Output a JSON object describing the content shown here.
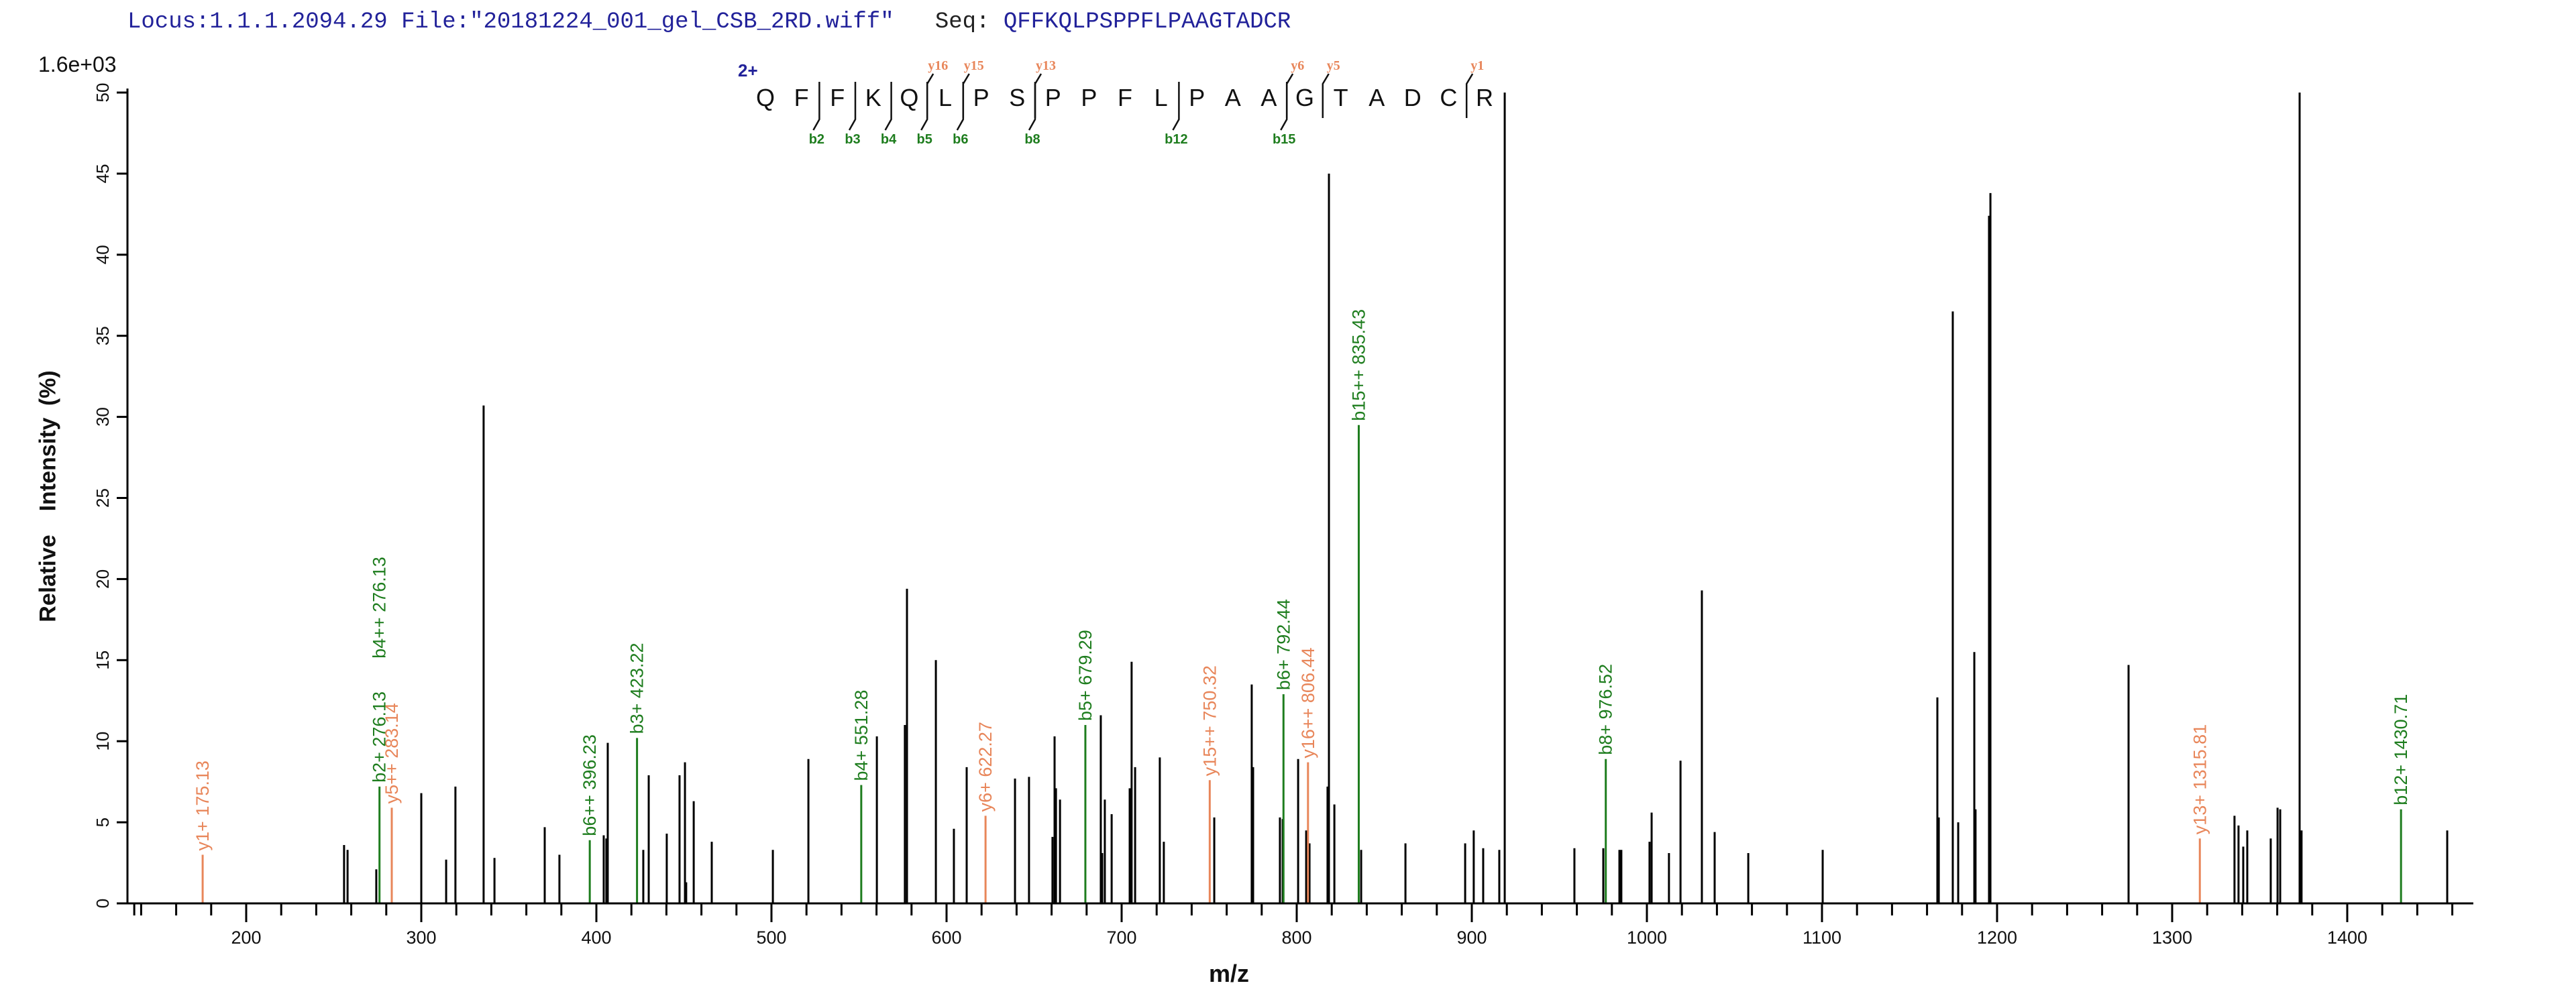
{
  "header": {
    "locus_label": "Locus:1.1.1.2094.29",
    "file_label": "File:\"20181224_001_gel_CSB_2RD.wiff\"",
    "seq_key": "Seq:",
    "seq_value": "QFFKQLPSPPFLPAAGTADCR"
  },
  "scale_label": "1.6e+03",
  "charge_label": "2+",
  "colors": {
    "b_ion": "#1e7d1e",
    "y_ion": "#e8865a",
    "unassigned": "#000000",
    "header_text": "#22229a",
    "axis": "#000000"
  },
  "sequence_map": {
    "residues": [
      "Q",
      "F",
      "F",
      "K",
      "Q",
      "L",
      "P",
      "S",
      "P",
      "P",
      "F",
      "L",
      "P",
      "A",
      "A",
      "G",
      "T",
      "A",
      "D",
      "C",
      "R"
    ],
    "b_cleavages": [
      {
        "after": 2,
        "label": "b2"
      },
      {
        "after": 3,
        "label": "b3"
      },
      {
        "after": 4,
        "label": "b4"
      },
      {
        "after": 5,
        "label": "b5"
      },
      {
        "after": 6,
        "label": "b6"
      },
      {
        "after": 8,
        "label": "b8"
      },
      {
        "after": 12,
        "label": "b12"
      },
      {
        "after": 15,
        "label": "b15"
      }
    ],
    "y_cleavages": [
      {
        "after": 5,
        "label": "y16"
      },
      {
        "after": 6,
        "label": "y15"
      },
      {
        "after": 8,
        "label": "y13"
      },
      {
        "after": 15,
        "label": "y6"
      },
      {
        "after": 16,
        "label": "y5"
      },
      {
        "after": 20,
        "label": "y1"
      }
    ]
  },
  "chart_data": {
    "type": "bar",
    "title": "Locus:1.1.1.2094.29 File:\"20181224_001_gel_CSB_2RD.wiff\" Seq: QFFKQLPSPPFLPAAGTADCR",
    "xlabel": "m/z",
    "ylabel": "Relative  Intensity (%)",
    "xlim": [
      133,
      1472
    ],
    "ylim": [
      0,
      50
    ],
    "x_ticks_major": [
      200,
      300,
      400,
      500,
      600,
      700,
      800,
      900,
      1000,
      1100,
      1200,
      1300,
      1400
    ],
    "x_tick_minor_step": 20,
    "y_ticks": [
      0,
      5,
      10,
      15,
      20,
      25,
      30,
      35,
      40,
      45,
      50
    ],
    "intensity_scale": "1.6e+03",
    "grid": false,
    "annotated_peaks": [
      {
        "mz": 175.13,
        "intensity": 3.0,
        "ion": "y",
        "label": "y1+ 175.13"
      },
      {
        "mz": 276.13,
        "intensity": 7.2,
        "ion": "b",
        "label": "b2+ 276.13"
      },
      {
        "mz": 276.13,
        "intensity": 7.2,
        "ion": "b",
        "label": "b4++ 276.13",
        "label_offset": 185,
        "label_only": true
      },
      {
        "mz": 283.14,
        "intensity": 5.9,
        "ion": "y",
        "label": "y5++ 283.14"
      },
      {
        "mz": 396.23,
        "intensity": 3.9,
        "ion": "b",
        "label": "b6++ 396.23"
      },
      {
        "mz": 423.22,
        "intensity": 10.2,
        "ion": "b",
        "label": "b3+ 423.22"
      },
      {
        "mz": 551.28,
        "intensity": 7.3,
        "ion": "b",
        "label": "b4+ 551.28"
      },
      {
        "mz": 622.27,
        "intensity": 5.4,
        "ion": "y",
        "label": "y6+ 622.27"
      },
      {
        "mz": 679.29,
        "intensity": 11.0,
        "ion": "b",
        "label": "b5+ 679.29"
      },
      {
        "mz": 750.32,
        "intensity": 7.6,
        "ion": "y",
        "label": "y15++ 750.32"
      },
      {
        "mz": 792.44,
        "intensity": 12.9,
        "ion": "b",
        "label": "b6+ 792.44"
      },
      {
        "mz": 806.44,
        "intensity": 8.7,
        "ion": "y",
        "label": "y16++ 806.44"
      },
      {
        "mz": 835.43,
        "intensity": 29.5,
        "ion": "b",
        "label": "b15++ 835.43"
      },
      {
        "mz": 976.52,
        "intensity": 8.9,
        "ion": "b",
        "label": "b8+ 976.52"
      },
      {
        "mz": 1315.81,
        "intensity": 4.0,
        "ion": "y",
        "label": "y13+ 1315.81"
      },
      {
        "mz": 1430.71,
        "intensity": 5.8,
        "ion": "b",
        "label": "b12+ 1430.71"
      }
    ],
    "unassigned_peaks": [
      [
        255.9,
        3.6
      ],
      [
        257.9,
        3.3
      ],
      [
        274.3,
        2.1
      ],
      [
        300.0,
        6.8
      ],
      [
        314.2,
        2.7
      ],
      [
        319.5,
        7.2
      ],
      [
        335.6,
        30.7
      ],
      [
        341.8,
        2.8
      ],
      [
        370.5,
        4.7
      ],
      [
        378.9,
        3.0
      ],
      [
        404.2,
        4.2
      ],
      [
        405.7,
        4.0
      ],
      [
        406.5,
        9.9
      ],
      [
        426.8,
        3.3
      ],
      [
        429.9,
        7.9
      ],
      [
        440.2,
        4.3
      ],
      [
        447.5,
        7.9
      ],
      [
        450.6,
        8.7
      ],
      [
        451.3,
        1.3
      ],
      [
        455.6,
        6.3
      ],
      [
        465.9,
        3.8
      ],
      [
        500.8,
        3.3
      ],
      [
        521.1,
        8.9
      ],
      [
        560.2,
        10.3
      ],
      [
        576.2,
        11.0
      ],
      [
        577.4,
        19.4
      ],
      [
        593.9,
        15.0
      ],
      [
        604.2,
        4.6
      ],
      [
        611.5,
        8.4
      ],
      [
        639.1,
        7.7
      ],
      [
        647.1,
        7.8
      ],
      [
        660.5,
        4.1
      ],
      [
        661.7,
        10.3
      ],
      [
        662.5,
        7.1
      ],
      [
        664.8,
        6.4
      ],
      [
        688.1,
        11.6
      ],
      [
        688.9,
        3.1
      ],
      [
        690.4,
        6.4
      ],
      [
        694.3,
        5.5
      ],
      [
        704.6,
        7.1
      ],
      [
        705.7,
        14.9
      ],
      [
        707.7,
        8.4
      ],
      [
        721.8,
        9.0
      ],
      [
        724.1,
        3.8
      ],
      [
        752.9,
        5.3
      ],
      [
        774.3,
        13.5
      ],
      [
        775.1,
        8.4
      ],
      [
        790.4,
        5.3
      ],
      [
        792.0,
        5.2
      ],
      [
        800.8,
        8.9
      ],
      [
        805.4,
        4.5
      ],
      [
        807.3,
        3.7
      ],
      [
        817.6,
        7.2
      ],
      [
        818.4,
        45.0
      ],
      [
        821.5,
        6.1
      ],
      [
        836.8,
        3.3
      ],
      [
        862.1,
        3.7
      ],
      [
        896.2,
        3.7
      ],
      [
        901.1,
        4.5
      ],
      [
        906.5,
        3.4
      ],
      [
        915.7,
        3.3
      ],
      [
        918.8,
        50.0
      ],
      [
        958.6,
        3.4
      ],
      [
        975.1,
        3.4
      ],
      [
        984.3,
        3.3
      ],
      [
        985.4,
        3.3
      ],
      [
        1001.5,
        3.8
      ],
      [
        1002.7,
        5.6
      ],
      [
        1012.6,
        3.1
      ],
      [
        1019.2,
        8.8
      ],
      [
        1031.4,
        19.3
      ],
      [
        1038.7,
        4.4
      ],
      [
        1057.9,
        3.1
      ],
      [
        1100.4,
        3.3
      ],
      [
        1165.9,
        12.7
      ],
      [
        1166.7,
        5.3
      ],
      [
        1174.7,
        36.5
      ],
      [
        1177.8,
        5.0
      ],
      [
        1187.0,
        15.5
      ],
      [
        1187.7,
        5.8
      ],
      [
        1195.4,
        42.4
      ],
      [
        1196.2,
        43.8
      ],
      [
        1275.1,
        14.7
      ],
      [
        1335.6,
        5.4
      ],
      [
        1337.9,
        4.8
      ],
      [
        1340.6,
        3.5
      ],
      [
        1342.9,
        4.5
      ],
      [
        1356.3,
        4.0
      ],
      [
        1360.2,
        5.9
      ],
      [
        1361.7,
        5.8
      ],
      [
        1372.8,
        50.0
      ],
      [
        1373.9,
        4.5
      ],
      [
        1457.1,
        4.5
      ]
    ]
  }
}
